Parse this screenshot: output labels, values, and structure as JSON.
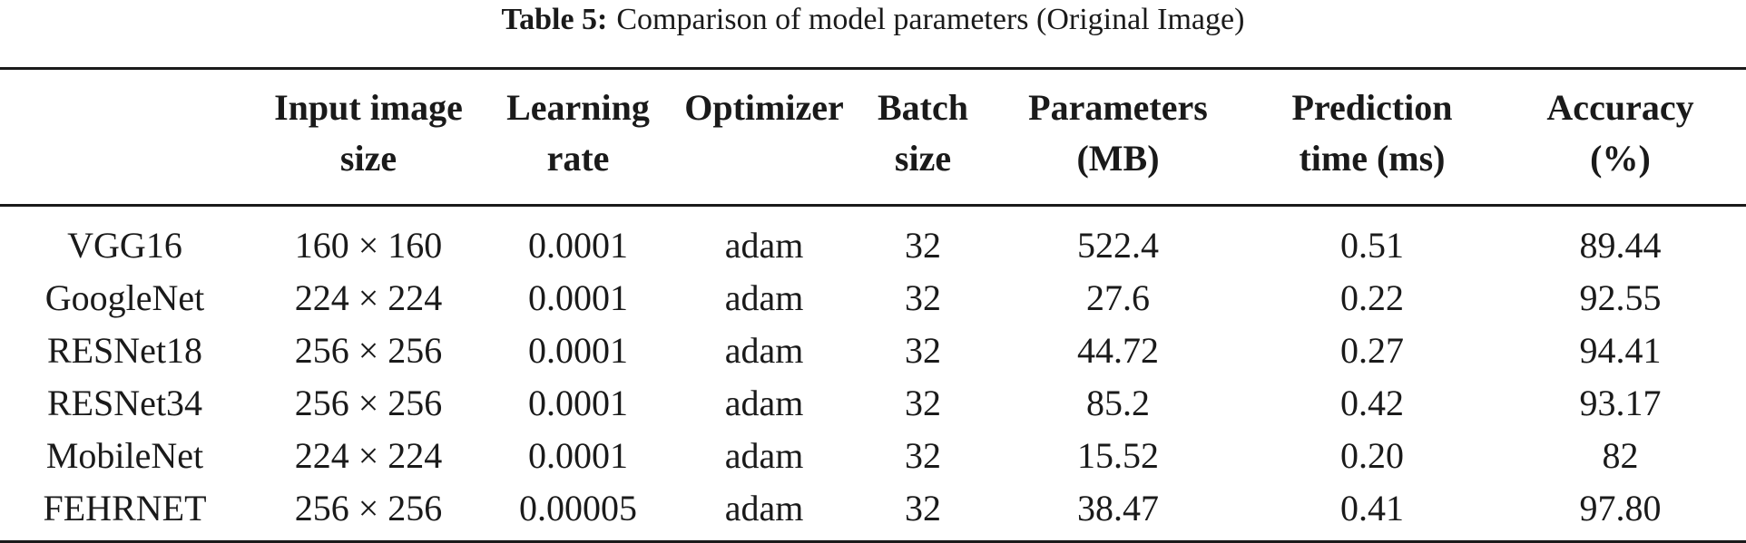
{
  "caption": {
    "label": "Table 5:",
    "text": "Comparison of model parameters (Original Image)"
  },
  "table": {
    "headers": [
      {
        "line1": "",
        "line2": ""
      },
      {
        "line1": "Input image",
        "line2": "size"
      },
      {
        "line1": "Learning",
        "line2": "rate"
      },
      {
        "line1": "Optimizer",
        "line2": ""
      },
      {
        "line1": "Batch",
        "line2": "size"
      },
      {
        "line1": "Parameters",
        "line2": "(MB)"
      },
      {
        "line1": "Prediction",
        "line2": "time (ms)"
      },
      {
        "line1": "Accuracy",
        "line2": "(%)"
      }
    ],
    "rows": [
      [
        "VGG16",
        "160 × 160",
        "0.0001",
        "adam",
        "32",
        "522.4",
        "0.51",
        "89.44"
      ],
      [
        "GoogleNet",
        "224 × 224",
        "0.0001",
        "adam",
        "32",
        "27.6",
        "0.22",
        "92.55"
      ],
      [
        "RESNet18",
        "256 × 256",
        "0.0001",
        "adam",
        "32",
        "44.72",
        "0.27",
        "94.41"
      ],
      [
        "RESNet34",
        "256 × 256",
        "0.0001",
        "adam",
        "32",
        "85.2",
        "0.42",
        "93.17"
      ],
      [
        "MobileNet",
        "224 × 224",
        "0.0001",
        "adam",
        "32",
        "15.52",
        "0.20",
        "82"
      ],
      [
        "FEHRNET",
        "256 × 256",
        "0.00005",
        "adam",
        "32",
        "38.47",
        "0.41",
        "97.80"
      ]
    ]
  }
}
